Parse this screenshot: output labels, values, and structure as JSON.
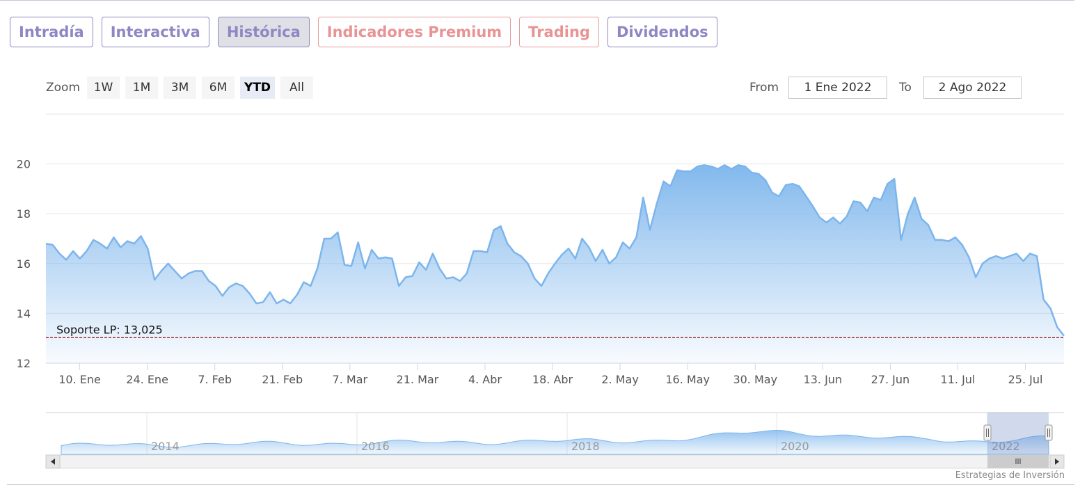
{
  "tabs": [
    {
      "label": "Intradía",
      "style": "purple",
      "active": false
    },
    {
      "label": "Interactiva",
      "style": "purple",
      "active": false
    },
    {
      "label": "Histórica",
      "style": "purple",
      "active": true
    },
    {
      "label": "Indicadores Premium",
      "style": "red",
      "active": false
    },
    {
      "label": "Trading",
      "style": "red",
      "active": false
    },
    {
      "label": "Dividendos",
      "style": "purple",
      "active": false
    }
  ],
  "zoom": {
    "label": "Zoom",
    "buttons": [
      "1W",
      "1M",
      "3M",
      "6M",
      "YTD",
      "All"
    ],
    "active": "YTD"
  },
  "range": {
    "from_label": "From",
    "from_value": "1 Ene 2022",
    "to_label": "To",
    "to_value": "2 Ago 2022"
  },
  "credits": "Estrategias de Inversión",
  "colors": {
    "line": "#7cb5ec",
    "support": "#8b0000",
    "tab_purple": "#8d87c4",
    "tab_red": "#e89494"
  },
  "chart_data": {
    "type": "area",
    "x_ticks": [
      "10. Ene",
      "24. Ene",
      "7. Feb",
      "21. Feb",
      "7. Mar",
      "21. Mar",
      "4. Abr",
      "18. Abr",
      "2. May",
      "16. May",
      "30. May",
      "13. Jun",
      "27. Jun",
      "11. Jul",
      "25. Jul"
    ],
    "y_ticks": [
      12,
      14,
      16,
      18,
      20
    ],
    "ylim": [
      12,
      22
    ],
    "grid": true,
    "x_range": [
      "2022-01-03",
      "2022-08-02"
    ],
    "series": [
      {
        "values": [
          16.8,
          16.75,
          16.4,
          16.15,
          16.5,
          16.2,
          16.5,
          16.95,
          16.8,
          16.6,
          17.05,
          16.65,
          16.9,
          16.8,
          17.1,
          16.6,
          15.35,
          15.7,
          16.0,
          15.7,
          15.4,
          15.6,
          15.7,
          15.7,
          15.3,
          15.1,
          14.7,
          15.05,
          15.2,
          15.1,
          14.8,
          14.4,
          14.45,
          14.85,
          14.4,
          14.55,
          14.4,
          14.75,
          15.25,
          15.1,
          15.8,
          17.0,
          17.0,
          17.25,
          15.95,
          15.9,
          16.85,
          15.8,
          16.55,
          16.2,
          16.25,
          16.2,
          15.1,
          15.45,
          15.5,
          16.05,
          15.75,
          16.4,
          15.8,
          15.4,
          15.45,
          15.3,
          15.6,
          16.5,
          16.5,
          16.45,
          17.35,
          17.5,
          16.8,
          16.45,
          16.3,
          16.0,
          15.4,
          15.1,
          15.6,
          16.0,
          16.35,
          16.6,
          16.2,
          17.0,
          16.65,
          16.1,
          16.55,
          16.0,
          16.25,
          16.85,
          16.6,
          17.05,
          18.65,
          17.35,
          18.4,
          19.3,
          19.1,
          19.75,
          19.7,
          19.7,
          19.9,
          19.95,
          19.9,
          19.8,
          19.95,
          19.8,
          19.95,
          19.9,
          19.65,
          19.6,
          19.35,
          18.85,
          18.7,
          19.15,
          19.2,
          19.1,
          18.7,
          18.3,
          17.85,
          17.65,
          17.85,
          17.6,
          17.9,
          18.5,
          18.45,
          18.1,
          18.65,
          18.55,
          19.2,
          19.4,
          16.95,
          18.0,
          18.65,
          17.8,
          17.55,
          16.95,
          16.95,
          16.9,
          17.05,
          16.75,
          16.25,
          15.45,
          16.0,
          16.2,
          16.3,
          16.2,
          16.3,
          16.4,
          16.1,
          16.4,
          16.3,
          14.55,
          14.2,
          13.45,
          13.1
        ]
      }
    ],
    "annotations": [
      {
        "label": "Soporte LP: 13,025",
        "value": 13.025
      }
    ],
    "navigator": {
      "x_ticks": [
        "2014",
        "2016",
        "2018",
        "2020",
        "2022"
      ]
    }
  }
}
